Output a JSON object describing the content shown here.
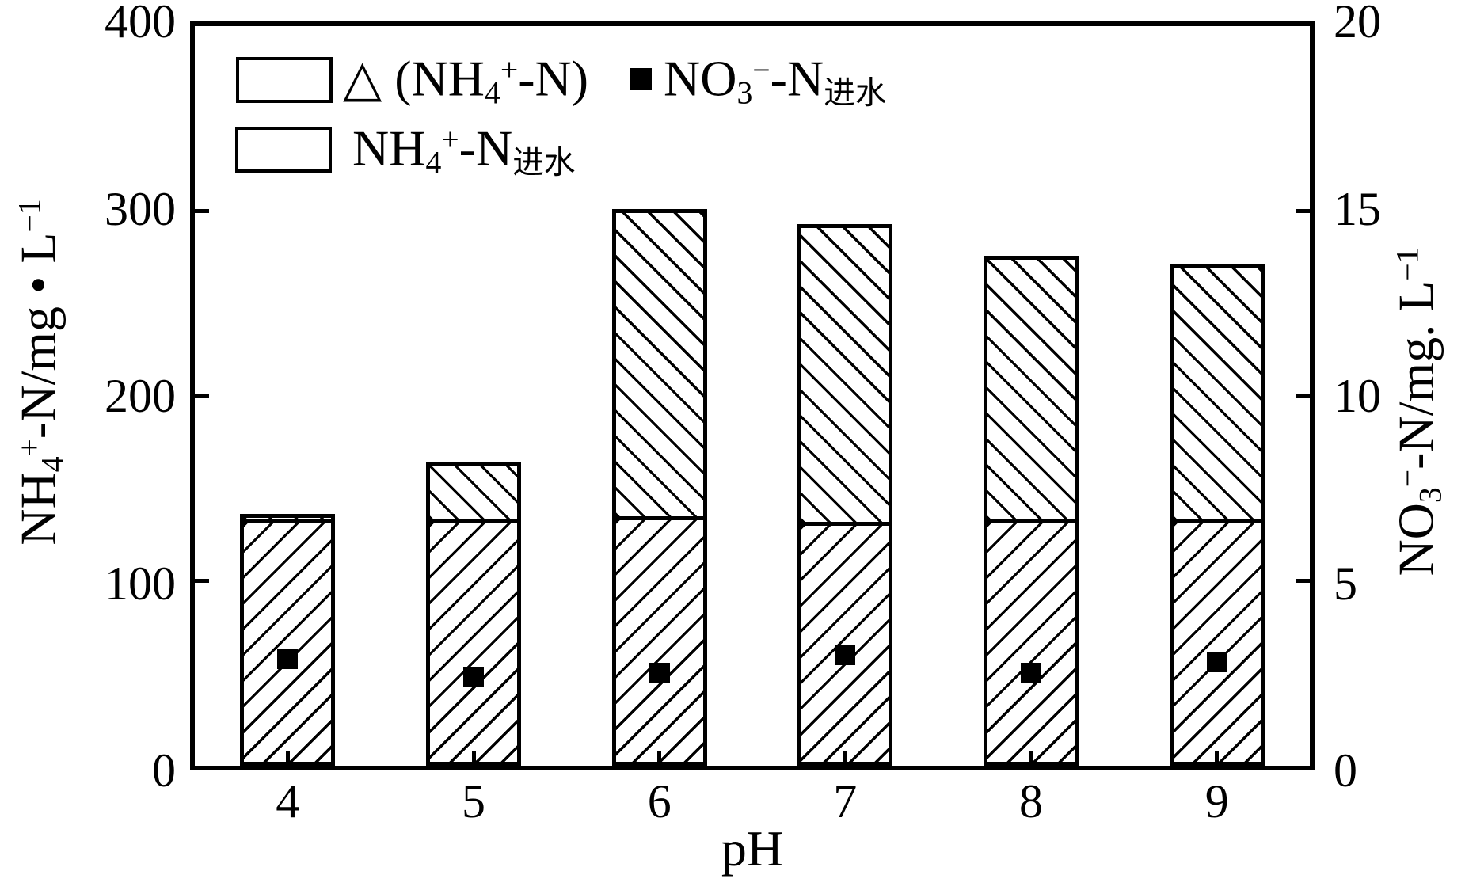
{
  "figure": {
    "background_color": "#ffffff",
    "ink_color": "#000000"
  },
  "chart_data": {
    "type": "bar",
    "subtype": "stacked-bars-with-secondary-axis-square-markers",
    "title": "",
    "xlabel": "pH",
    "grid": false,
    "legend_position": "upper-left",
    "categories": [
      "4",
      "5",
      "6",
      "7",
      "8",
      "9"
    ],
    "left_axis": {
      "range": [
        0,
        400
      ],
      "tick_values": [
        0,
        100,
        200,
        300,
        400
      ],
      "tick_labels": [
        "0",
        "100",
        "200",
        "300",
        "400"
      ],
      "label_parts": [
        {
          "t": "NH"
        },
        {
          "t": "4",
          "s": "sub"
        },
        {
          "t": "+",
          "s": "sup"
        },
        {
          "t": "-N/mg "
        },
        {
          "t": "•"
        },
        {
          "t": " L"
        },
        {
          "t": "−1",
          "s": "sup"
        }
      ]
    },
    "right_axis": {
      "range": [
        0,
        20
      ],
      "tick_values": [
        0,
        5,
        10,
        15,
        20
      ],
      "tick_labels": [
        "0",
        "5",
        "10",
        "15",
        "20"
      ],
      "label_parts": [
        {
          "t": "NO"
        },
        {
          "t": "3",
          "s": "sub"
        },
        {
          "t": "−",
          "s": "sup"
        },
        {
          "t": "-N/mg. L"
        },
        {
          "t": "−1",
          "s": "sup"
        }
      ]
    },
    "series": [
      {
        "id": "nh4_influent",
        "axis": "left",
        "render": "bar-bottom-segment",
        "hatch": "/",
        "values": [
          133,
          133,
          135,
          132,
          133,
          133
        ]
      },
      {
        "id": "nh4_delta",
        "axis": "left",
        "render": "bar-top-segment",
        "hatch": "\\",
        "values": [
          3,
          31,
          166,
          161,
          143,
          138
        ]
      },
      {
        "id": "no3_influent",
        "axis": "right",
        "render": "square-marker",
        "values": [
          2.9,
          2.4,
          2.5,
          3.0,
          2.5,
          2.8
        ]
      }
    ]
  },
  "legend": {
    "items": [
      {
        "id": "delta-nh4",
        "marker": "hatch-backslash-swatch",
        "label_parts": [
          {
            "t": "△ (NH"
          },
          {
            "t": "4",
            "s": "sub"
          },
          {
            "t": "+",
            "s": "sup"
          },
          {
            "t": "-N)"
          }
        ]
      },
      {
        "id": "no3-influent",
        "marker": "filled-square",
        "label_parts": [
          {
            "t": "NO"
          },
          {
            "t": "3",
            "s": "sub"
          },
          {
            "t": "−",
            "s": "sup"
          },
          {
            "t": "-N"
          },
          {
            "t": "进水",
            "s": "sub"
          }
        ]
      },
      {
        "id": "nh4-influent",
        "marker": "hatch-slash-swatch",
        "label_parts": [
          {
            "t": "NH"
          },
          {
            "t": "4",
            "s": "sub"
          },
          {
            "t": "+",
            "s": "sup"
          },
          {
            "t": "-N"
          },
          {
            "t": "进水",
            "s": "sub"
          }
        ]
      }
    ]
  }
}
